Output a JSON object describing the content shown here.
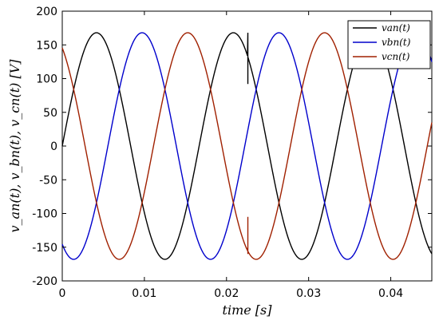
{
  "chart_data": {
    "type": "line",
    "title": "",
    "xlabel": "time  [s]",
    "ylabel": "v_an(t), v_bn(t), v_cn(t)  [V]",
    "xlim": [
      0,
      0.045
    ],
    "ylim": [
      -200,
      200
    ],
    "x_ticks": [
      0,
      0.01,
      0.02,
      0.03,
      0.04
    ],
    "x_tick_labels": [
      "0",
      "0.01",
      "0.02",
      "0.03",
      "0.04"
    ],
    "y_ticks": [
      -200,
      -150,
      -100,
      -50,
      0,
      50,
      100,
      150,
      200
    ],
    "y_tick_labels": [
      "-200",
      "-150",
      "-100",
      "-50",
      "0",
      "50",
      "100",
      "150",
      "200"
    ],
    "grid": false,
    "legend_position": "top-right",
    "amplitude": 168,
    "frequency_hz": 60,
    "series": [
      {
        "name": "v_an(t)",
        "legend_label": "van(t)",
        "color": "#000000",
        "phase_deg": 0,
        "transient": {
          "t": 0.0226,
          "values": [
            168,
            92,
            130,
            112
          ]
        }
      },
      {
        "name": "v_bn(t)",
        "legend_label": "vbn(t)",
        "color": "#0000cc",
        "phase_deg": -120,
        "transient": null
      },
      {
        "name": "v_cn(t)",
        "legend_label": "vcn(t)",
        "color": "#a02000",
        "phase_deg": 120,
        "transient": {
          "t": 0.0226,
          "values": [
            -150,
            -105,
            -160,
            -145
          ]
        }
      }
    ]
  }
}
